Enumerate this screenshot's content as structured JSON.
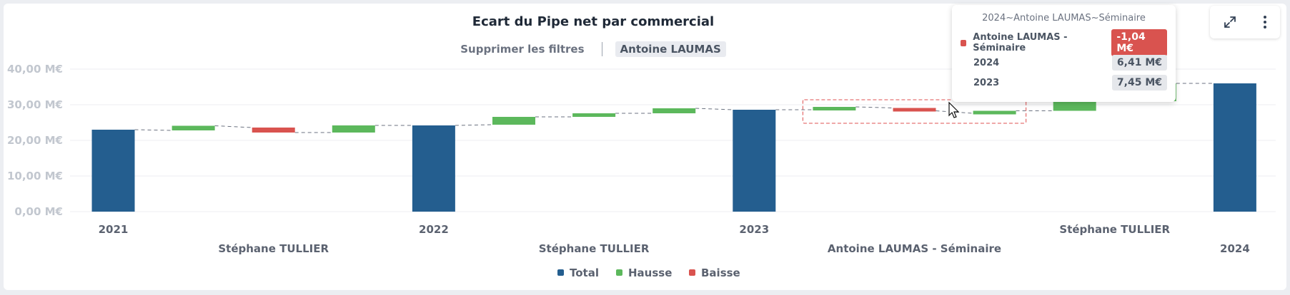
{
  "title": "Ecart du Pipe net par commercial",
  "filters": {
    "clear_label": "Supprimer les filtres",
    "active_chip": "Antoine LAUMAS"
  },
  "toolbar": {
    "expand_icon": "expand-icon",
    "menu_icon": "kebab-menu-icon"
  },
  "tooltip": {
    "header": "2024~Antoine LAUMAS~Séminaire",
    "rows": [
      {
        "label": "Antoine LAUMAS - Séminaire",
        "value": "-1,04 M€",
        "color": "#d9534f"
      },
      {
        "label": "2024",
        "value": "6,41 M€"
      },
      {
        "label": "2023",
        "value": "7,45 M€"
      }
    ]
  },
  "chart_data": {
    "type": "bar",
    "subtype": "waterfall",
    "title": "Ecart du Pipe net par commercial",
    "ylim": [
      0,
      40
    ],
    "y_ticks": [
      "0,00 M€",
      "10,00 M€",
      "20,00 M€",
      "30,00 M€",
      "40,00 M€"
    ],
    "y_tick_values": [
      0,
      10,
      20,
      30,
      40
    ],
    "grid": true,
    "legend_position": "bottom-center",
    "colors": {
      "Total": "#245e8f",
      "Hausse": "#5cb85c",
      "Baisse": "#d9534f"
    },
    "legend": [
      "Total",
      "Hausse",
      "Baisse"
    ],
    "bars": [
      {
        "kind": "Total",
        "start": 0,
        "end": 23.0
      },
      {
        "kind": "Hausse",
        "start": 22.8,
        "end": 24.1
      },
      {
        "kind": "Baisse",
        "start": 23.6,
        "end": 22.2
      },
      {
        "kind": "Hausse",
        "start": 22.2,
        "end": 24.2
      },
      {
        "kind": "Total",
        "start": 0,
        "end": 24.2
      },
      {
        "kind": "Hausse",
        "start": 24.4,
        "end": 26.6
      },
      {
        "kind": "Hausse",
        "start": 26.6,
        "end": 27.6
      },
      {
        "kind": "Hausse",
        "start": 27.6,
        "end": 29.0
      },
      {
        "kind": "Total",
        "start": 0,
        "end": 28.6
      },
      {
        "kind": "Hausse",
        "start": 28.6,
        "end": 29.4
      },
      {
        "kind": "Baisse",
        "start": 29.1,
        "end": 28.3
      },
      {
        "kind": "Hausse",
        "start": 27.6,
        "end": 28.3
      },
      {
        "kind": "Hausse",
        "start": 28.3,
        "end": 31.0
      },
      {
        "kind": "Hausse",
        "start": 31.0,
        "end": 36.0
      },
      {
        "kind": "Total",
        "start": 0,
        "end": 36.0
      }
    ],
    "x_labels_top": [
      {
        "text": "2021",
        "bar": 0
      },
      {
        "text": "2022",
        "bar": 4
      },
      {
        "text": "2023",
        "bar": 8
      },
      {
        "text": "Stéphane TULLIER",
        "bar": 12.5
      }
    ],
    "x_labels_bottom": [
      {
        "text": "Stéphane TULLIER",
        "bar": 2
      },
      {
        "text": "Stéphane TULLIER",
        "bar": 6
      },
      {
        "text": "Antoine LAUMAS - Séminaire",
        "bar": 10
      },
      {
        "text": "2024",
        "bar": 14
      }
    ],
    "highlight": {
      "from_bar": 9,
      "to_bar": 11
    }
  }
}
